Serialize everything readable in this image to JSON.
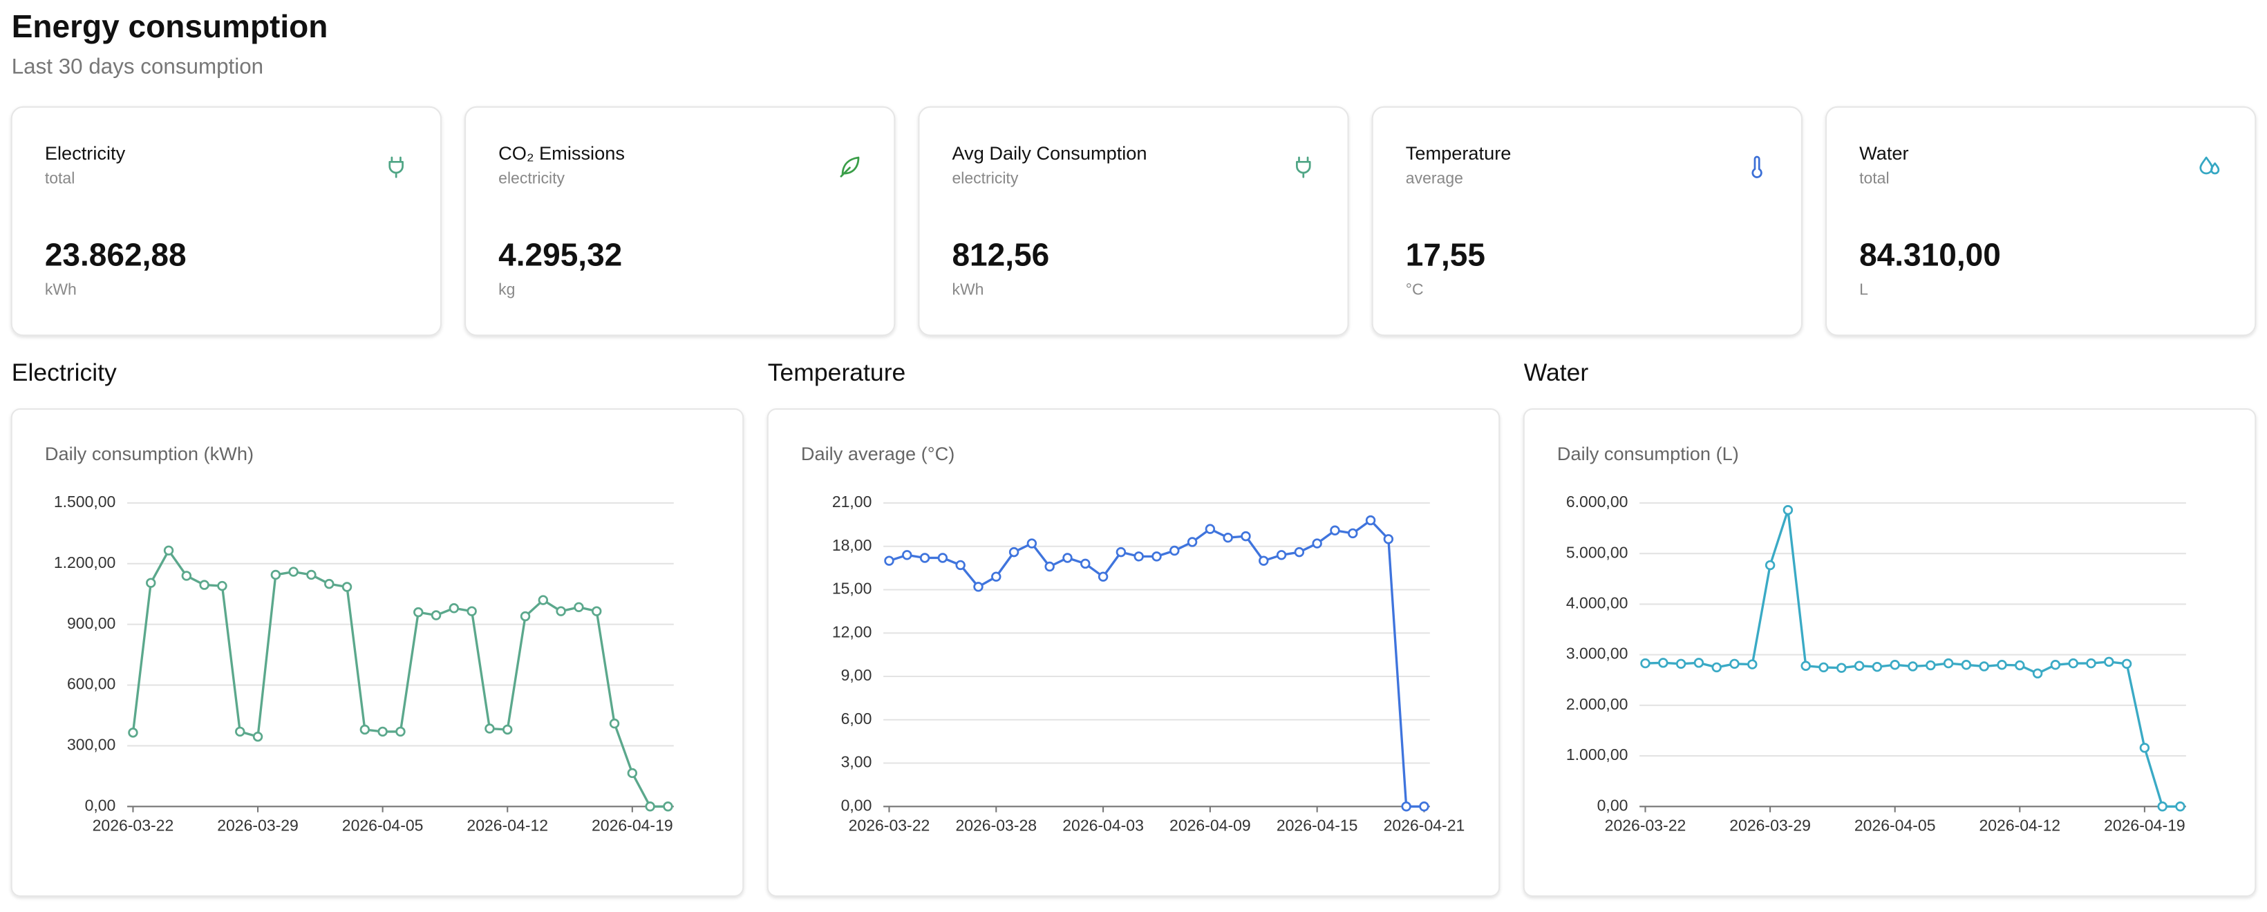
{
  "header": {
    "title": "Energy consumption",
    "subtitle": "Last 30 days consumption"
  },
  "cards": [
    {
      "label": "Electricity",
      "sublabel": "total",
      "value": "23.862,88",
      "unit": "kWh",
      "icon": "plug",
      "color": "#4fa585"
    },
    {
      "label": "CO₂ Emissions",
      "sublabel": "electricity",
      "value": "4.295,32",
      "unit": "kg",
      "icon": "leaf",
      "color": "#3a9e48"
    },
    {
      "label": "Avg Daily Consumption",
      "sublabel": "electricity",
      "value": "812,56",
      "unit": "kWh",
      "icon": "plug",
      "color": "#4fa585"
    },
    {
      "label": "Temperature",
      "sublabel": "average",
      "value": "17,55",
      "unit": "°C",
      "icon": "thermo",
      "color": "#3b6fd6"
    },
    {
      "label": "Water",
      "sublabel": "total",
      "value": "84.310,00",
      "unit": "L",
      "icon": "drop",
      "color": "#35a7c3"
    }
  ],
  "chart_data": [
    {
      "type": "line",
      "title": "Electricity",
      "subtitle": "Daily consumption (kWh)",
      "color": "#5ba88c",
      "x": [
        "2026-03-22",
        "2026-03-23",
        "2026-03-24",
        "2026-03-25",
        "2026-03-26",
        "2026-03-27",
        "2026-03-28",
        "2026-03-29",
        "2026-03-30",
        "2026-03-31",
        "2026-04-01",
        "2026-04-02",
        "2026-04-03",
        "2026-04-04",
        "2026-04-05",
        "2026-04-06",
        "2026-04-07",
        "2026-04-08",
        "2026-04-09",
        "2026-04-10",
        "2026-04-11",
        "2026-04-12",
        "2026-04-13",
        "2026-04-14",
        "2026-04-15",
        "2026-04-16",
        "2026-04-17",
        "2026-04-18",
        "2026-04-19",
        "2026-04-20",
        "2026-04-21"
      ],
      "values": [
        365,
        1105,
        1265,
        1140,
        1095,
        1090,
        370,
        345,
        1145,
        1160,
        1145,
        1100,
        1085,
        380,
        370,
        370,
        960,
        945,
        980,
        965,
        385,
        380,
        940,
        1020,
        965,
        985,
        965,
        410,
        165,
        0,
        0
      ],
      "xticks": [
        "2026-03-22",
        "2026-03-29",
        "2026-04-05",
        "2026-04-12",
        "2026-04-19"
      ],
      "ylim": [
        0,
        1500
      ],
      "yticks": [
        {
          "value": 0,
          "label": "0,00"
        },
        {
          "value": 300,
          "label": "300,00"
        },
        {
          "value": 600,
          "label": "600,00"
        },
        {
          "value": 900,
          "label": "900,00"
        },
        {
          "value": 1200,
          "label": "1.200,00"
        },
        {
          "value": 1500,
          "label": "1.500,00"
        }
      ],
      "grid": true
    },
    {
      "type": "line",
      "title": "Temperature",
      "subtitle": "Daily average (°C)",
      "color": "#3f74dd",
      "x": [
        "2026-03-22",
        "2026-03-23",
        "2026-03-24",
        "2026-03-25",
        "2026-03-26",
        "2026-03-27",
        "2026-03-28",
        "2026-03-29",
        "2026-03-30",
        "2026-03-31",
        "2026-04-01",
        "2026-04-02",
        "2026-04-03",
        "2026-04-04",
        "2026-04-05",
        "2026-04-06",
        "2026-04-07",
        "2026-04-08",
        "2026-04-09",
        "2026-04-10",
        "2026-04-11",
        "2026-04-12",
        "2026-04-13",
        "2026-04-14",
        "2026-04-15",
        "2026-04-16",
        "2026-04-17",
        "2026-04-18",
        "2026-04-19",
        "2026-04-20",
        "2026-04-21"
      ],
      "values": [
        17.0,
        17.4,
        17.2,
        17.2,
        16.7,
        15.2,
        15.9,
        17.6,
        18.2,
        16.6,
        17.2,
        16.8,
        15.9,
        17.6,
        17.3,
        17.3,
        17.7,
        18.3,
        19.2,
        18.6,
        18.7,
        17.0,
        17.4,
        17.6,
        18.2,
        19.1,
        18.9,
        19.8,
        18.5,
        0,
        0
      ],
      "xticks": [
        "2026-03-22",
        "2026-03-28",
        "2026-04-03",
        "2026-04-09",
        "2026-04-15",
        "2026-04-21"
      ],
      "ylim": [
        0,
        21
      ],
      "yticks": [
        {
          "value": 0,
          "label": "0,00"
        },
        {
          "value": 3,
          "label": "3,00"
        },
        {
          "value": 6,
          "label": "6,00"
        },
        {
          "value": 9,
          "label": "9,00"
        },
        {
          "value": 12,
          "label": "12,00"
        },
        {
          "value": 15,
          "label": "15,00"
        },
        {
          "value": 18,
          "label": "18,00"
        },
        {
          "value": 21,
          "label": "21,00"
        }
      ],
      "grid": true
    },
    {
      "type": "line",
      "title": "Water",
      "subtitle": "Daily consumption (L)",
      "color": "#3aaac5",
      "x": [
        "2026-03-22",
        "2026-03-23",
        "2026-03-24",
        "2026-03-25",
        "2026-03-26",
        "2026-03-27",
        "2026-03-28",
        "2026-03-29",
        "2026-03-30",
        "2026-03-31",
        "2026-04-01",
        "2026-04-02",
        "2026-04-03",
        "2026-04-04",
        "2026-04-05",
        "2026-04-06",
        "2026-04-07",
        "2026-04-08",
        "2026-04-09",
        "2026-04-10",
        "2026-04-11",
        "2026-04-12",
        "2026-04-13",
        "2026-04-14",
        "2026-04-15",
        "2026-04-16",
        "2026-04-17",
        "2026-04-18",
        "2026-04-19",
        "2026-04-20",
        "2026-04-21"
      ],
      "values": [
        2830,
        2840,
        2820,
        2840,
        2750,
        2820,
        2810,
        4770,
        5860,
        2780,
        2750,
        2740,
        2780,
        2760,
        2800,
        2770,
        2790,
        2830,
        2800,
        2770,
        2800,
        2790,
        2630,
        2800,
        2830,
        2830,
        2860,
        2820,
        1160,
        0,
        0
      ],
      "xticks": [
        "2026-03-22",
        "2026-03-29",
        "2026-04-05",
        "2026-04-12",
        "2026-04-19"
      ],
      "ylim": [
        0,
        6000
      ],
      "yticks": [
        {
          "value": 0,
          "label": "0,00"
        },
        {
          "value": 1000,
          "label": "1.000,00"
        },
        {
          "value": 2000,
          "label": "2.000,00"
        },
        {
          "value": 3000,
          "label": "3.000,00"
        },
        {
          "value": 4000,
          "label": "4.000,00"
        },
        {
          "value": 5000,
          "label": "5.000,00"
        },
        {
          "value": 6000,
          "label": "6.000,00"
        }
      ],
      "grid": true
    }
  ]
}
